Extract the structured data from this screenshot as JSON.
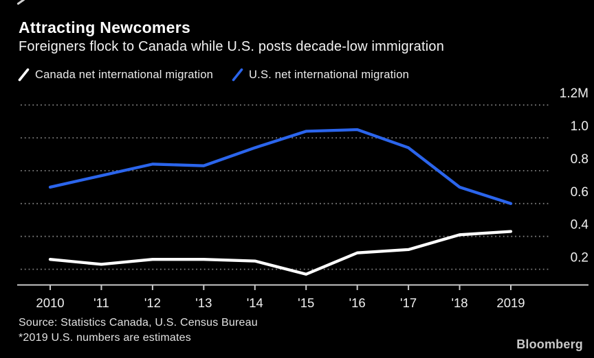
{
  "header": {
    "title": "Attracting Newcomers",
    "subtitle": "Foreigners flock to Canada while U.S. posts decade-low immigration"
  },
  "legend": [
    {
      "label": "Canada net international migration",
      "color": "#ffffff"
    },
    {
      "label": "U.S. net international migration",
      "color": "#2b65ec"
    }
  ],
  "chart_data": {
    "type": "line",
    "title": "Attracting Newcomers",
    "subtitle": "Foreigners flock to Canada while U.S. posts decade-low immigration",
    "unit": "millions of people per year",
    "x": [
      2010,
      2011,
      2012,
      2013,
      2014,
      2015,
      2016,
      2017,
      2018,
      2019
    ],
    "x_tick_labels": [
      "2010",
      "'11",
      "'12",
      "'13",
      "'14",
      "'15",
      "'16",
      "'17",
      "'18",
      "2019"
    ],
    "y_ticks": [
      0.2,
      0.4,
      0.6,
      0.8,
      1.0,
      1.2
    ],
    "y_tick_labels": [
      "0.2",
      "0.4",
      "0.6",
      "0.8",
      "1.0",
      "1.2M"
    ],
    "ylim": [
      0.1,
      1.3
    ],
    "grid": "horizontal-dotted",
    "legend_position": "top-left",
    "series": [
      {
        "name": "Canada net international migration",
        "color": "#ffffff",
        "values": [
          0.26,
          0.23,
          0.26,
          0.26,
          0.25,
          0.17,
          0.3,
          0.32,
          0.41,
          0.43
        ]
      },
      {
        "name": "U.S. net international migration",
        "color": "#2b65ec",
        "values": [
          0.7,
          0.77,
          0.84,
          0.83,
          0.94,
          1.04,
          1.05,
          0.94,
          0.7,
          0.6
        ]
      }
    ]
  },
  "colors": {
    "background": "#000000",
    "grid": "#9b9b9b",
    "axis": "#c9c9c9",
    "tick_text": "#f0f0f0"
  },
  "footer": {
    "source_line1": "Source: Statistics Canada, U.S. Census Bureau",
    "source_line2": "*2019 U.S. numbers are estimates",
    "brand": "Bloomberg"
  }
}
